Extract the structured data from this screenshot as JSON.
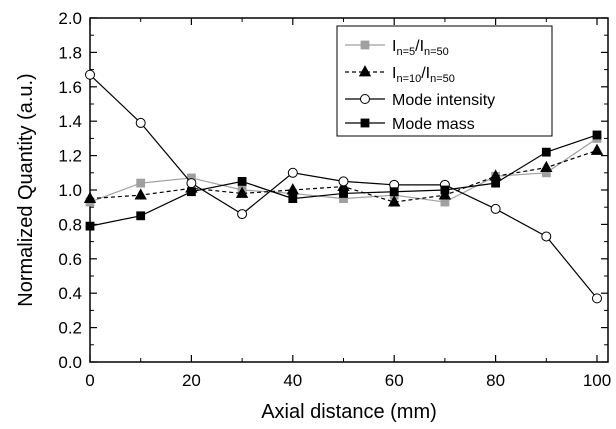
{
  "chart_data": {
    "type": "line",
    "title": "",
    "xlabel": "Axial distance (mm)",
    "ylabel": "Normalized Quantity (a.u.)",
    "xlim": [
      0,
      102
    ],
    "ylim": [
      0,
      2.0
    ],
    "xticks": [
      "0",
      "20",
      "40",
      "60",
      "80",
      "100"
    ],
    "yticks": [
      "0.0",
      "0.2",
      "0.4",
      "0.6",
      "0.8",
      "1.0",
      "1.2",
      "1.4",
      "1.6",
      "1.8",
      "2.0"
    ],
    "grid": false,
    "legend_position": "top-right",
    "x": [
      0,
      10,
      20,
      30,
      40,
      50,
      60,
      70,
      80,
      90,
      100
    ],
    "series": [
      {
        "name": "I n=5 / I n=50",
        "legend": {
          "main1": "I",
          "sub1": "n=5",
          "main2": "/I",
          "sub2": "n=50"
        },
        "marker": "square",
        "marker_fill": "#a0a0a0",
        "line_color": "#a0a0a0",
        "line_style": "solid",
        "values": [
          0.93,
          1.04,
          1.07,
          1.0,
          0.98,
          0.95,
          0.97,
          0.93,
          1.08,
          1.1,
          1.3
        ]
      },
      {
        "name": "I n=10 / I n=50",
        "legend": {
          "main1": "I",
          "sub1": "n=10",
          "main2": "/I",
          "sub2": "n=50"
        },
        "marker": "triangle",
        "marker_fill": "#000000",
        "line_color": "#000000",
        "line_style": "dashed",
        "values": [
          0.95,
          0.97,
          1.01,
          0.98,
          1.0,
          1.02,
          0.93,
          0.97,
          1.08,
          1.13,
          1.23
        ]
      },
      {
        "name": "Mode intensity",
        "marker": "circle",
        "marker_fill": "#ffffff",
        "line_color": "#000000",
        "line_style": "solid",
        "values": [
          1.67,
          1.39,
          1.04,
          0.86,
          1.1,
          1.05,
          1.03,
          1.03,
          0.89,
          0.73,
          0.37
        ]
      },
      {
        "name": "Mode mass",
        "marker": "square",
        "marker_fill": "#000000",
        "line_color": "#000000",
        "line_style": "solid",
        "values": [
          0.79,
          0.85,
          0.99,
          1.05,
          0.95,
          0.98,
          0.99,
          1.0,
          1.04,
          1.22,
          1.32
        ]
      }
    ]
  }
}
